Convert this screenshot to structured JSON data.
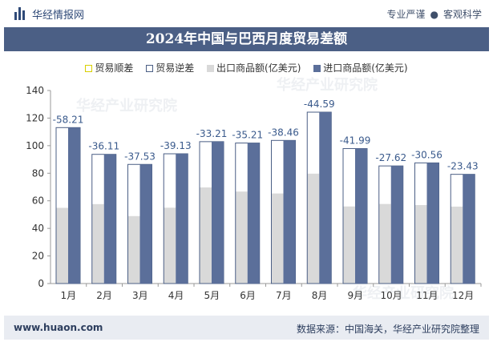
{
  "header": {
    "site_name": "华经情报网",
    "tagline_left": "专业严谨",
    "tagline_right": "客观科学"
  },
  "title": "2024年中国与巴西月度贸易差额",
  "legend": [
    {
      "label": "贸易顺差",
      "color": "#d9d000",
      "style": "outline"
    },
    {
      "label": "贸易逆差",
      "color": "#4b5f85",
      "style": "outline"
    },
    {
      "label": "出口商品额(亿美元)",
      "color": "#d9d9d9",
      "style": "fill"
    },
    {
      "label": "进口商品额(亿美元)",
      "color": "#5b6f9a",
      "style": "fill"
    }
  ],
  "watermark": "华经产业研究院",
  "chart_data": {
    "type": "bar",
    "categories": [
      "1月",
      "2月",
      "3月",
      "4月",
      "5月",
      "6月",
      "7月",
      "8月",
      "9月",
      "10月",
      "11月",
      "12月"
    ],
    "series": [
      {
        "name": "出口商品额(亿美元)",
        "values": [
          54.9,
          57.6,
          48.9,
          55.0,
          69.7,
          66.7,
          65.3,
          79.7,
          55.9,
          57.7,
          56.9,
          55.8
        ]
      },
      {
        "name": "进口商品额(亿美元)",
        "values": [
          113.1,
          93.7,
          86.4,
          94.1,
          102.9,
          101.9,
          103.8,
          124.3,
          97.9,
          85.3,
          87.5,
          79.2
        ]
      }
    ],
    "balance": {
      "name": "贸易逆差",
      "values": [
        -58.21,
        -36.11,
        -37.53,
        -39.13,
        -33.21,
        -35.21,
        -38.46,
        -44.59,
        -41.99,
        -27.62,
        -30.56,
        -23.43
      ],
      "labels": [
        "-58.21",
        "-36.11",
        "-37.53",
        "-39.13",
        "-33.21",
        "-35.21",
        "-38.46",
        "-44.59",
        "-41.99",
        "-27.62",
        "-30.56",
        "-23.43"
      ]
    },
    "ylim": [
      0,
      140
    ],
    "yticks": [
      0,
      20,
      40,
      60,
      80,
      100,
      120,
      140
    ],
    "grid": false,
    "legend_position": "top"
  },
  "colors": {
    "export": "#d9d9d9",
    "import": "#5b6f9a",
    "deficit_outline": "#4b5f85",
    "label": "#3a5a8c"
  },
  "footer": {
    "url": "www.huaon.com",
    "source": "数据来源：中国海关，华经产业研究院整理"
  }
}
